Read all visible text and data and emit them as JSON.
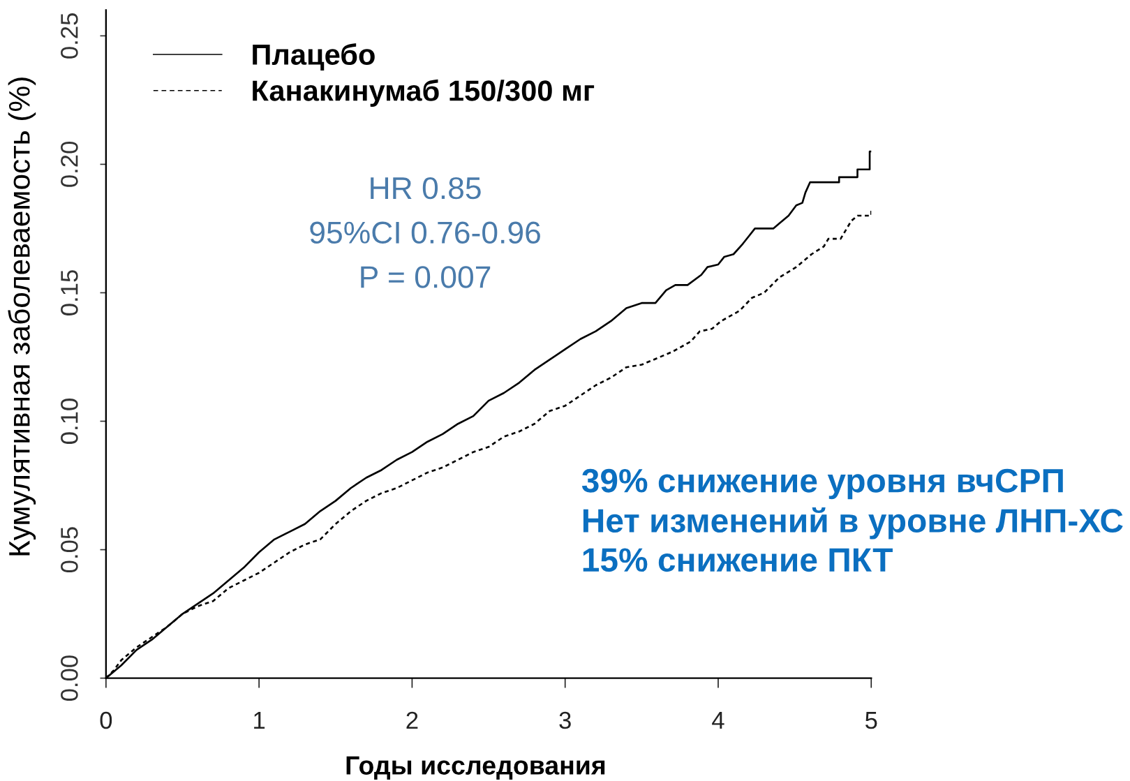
{
  "chart_data": {
    "type": "line",
    "xlabel": "Годы исследования",
    "ylabel": "Кумулятивная заболеваемость (%)",
    "annotations": [
      "HR 0.85\n95%CI 0.76-0.96\nP = 0.007",
      "39% снижение уровня вчСРП\nНет изменений в уровне ЛНП-ХС\n15% снижение ПКТ"
    ],
    "xlim": [
      0,
      5
    ],
    "ylim": [
      0,
      0.26
    ],
    "xticks": [
      0,
      1,
      2,
      3,
      4,
      5
    ],
    "yticks": [
      {
        "value": 0,
        "label": "0.00"
      },
      0.05,
      {
        "value": 0.1,
        "label": "0.10"
      },
      0.15,
      {
        "value": 0.2,
        "label": "0.20"
      },
      0.25
    ],
    "legend": "top left",
    "series": [
      {
        "name": "Плацебо",
        "color": "#000000",
        "line_style": "solid",
        "x": [
          0,
          0.1,
          0.2,
          0.3,
          0.4,
          0.5,
          0.6,
          0.7,
          0.8,
          0.9,
          1.0,
          1.1,
          1.2,
          1.3,
          1.4,
          1.5,
          1.6,
          1.7,
          1.8,
          1.9,
          2.0,
          2.1,
          2.2,
          2.3,
          2.4,
          2.5,
          2.6,
          2.7,
          2.8,
          2.9,
          3.0,
          3.1,
          3.2,
          3.3,
          3.4,
          3.5,
          3.59,
          3.66,
          3.72,
          3.8,
          3.89,
          3.93,
          4.0,
          4.04,
          4.1,
          4.16,
          4.2,
          4.24,
          4.36,
          4.4,
          4.46,
          4.51,
          4.55,
          4.57,
          4.6,
          4.79,
          4.79,
          4.91,
          4.91,
          4.99,
          4.99,
          5.0
        ],
        "values": [
          0,
          0.005,
          0.011,
          0.015,
          0.02,
          0.025,
          0.029,
          0.033,
          0.038,
          0.043,
          0.049,
          0.054,
          0.057,
          0.06,
          0.065,
          0.069,
          0.074,
          0.078,
          0.081,
          0.085,
          0.088,
          0.092,
          0.095,
          0.099,
          0.102,
          0.108,
          0.111,
          0.115,
          0.12,
          0.124,
          0.128,
          0.132,
          0.135,
          0.139,
          0.144,
          0.146,
          0.146,
          0.151,
          0.153,
          0.153,
          0.157,
          0.16,
          0.161,
          0.164,
          0.165,
          0.169,
          0.172,
          0.175,
          0.175,
          0.177,
          0.18,
          0.184,
          0.185,
          0.189,
          0.193,
          0.193,
          0.195,
          0.195,
          0.198,
          0.198,
          0.205,
          0.205
        ]
      },
      {
        "name": "Канакинумаб 150/300 мг",
        "color": "#000000",
        "line_style": "dashed",
        "x": [
          0,
          0.05,
          0.1,
          0.2,
          0.3,
          0.4,
          0.5,
          0.6,
          0.7,
          0.8,
          0.9,
          1.0,
          1.1,
          1.2,
          1.3,
          1.4,
          1.5,
          1.6,
          1.7,
          1.8,
          1.9,
          2.0,
          2.1,
          2.2,
          2.3,
          2.4,
          2.5,
          2.6,
          2.7,
          2.8,
          2.9,
          3.0,
          3.1,
          3.2,
          3.3,
          3.4,
          3.5,
          3.58,
          3.7,
          3.82,
          3.88,
          3.96,
          4.02,
          4.14,
          4.22,
          4.3,
          4.4,
          4.51,
          4.61,
          4.69,
          4.72,
          4.8,
          4.87,
          4.91,
          5.0,
          5.0
        ],
        "values": [
          0,
          0.003,
          0.007,
          0.012,
          0.016,
          0.02,
          0.025,
          0.028,
          0.03,
          0.035,
          0.038,
          0.041,
          0.045,
          0.049,
          0.052,
          0.054,
          0.06,
          0.065,
          0.069,
          0.072,
          0.074,
          0.077,
          0.08,
          0.082,
          0.085,
          0.088,
          0.09,
          0.094,
          0.096,
          0.099,
          0.104,
          0.106,
          0.11,
          0.114,
          0.117,
          0.121,
          0.122,
          0.124,
          0.127,
          0.131,
          0.135,
          0.136,
          0.139,
          0.143,
          0.148,
          0.15,
          0.156,
          0.16,
          0.165,
          0.168,
          0.171,
          0.171,
          0.178,
          0.18,
          0.18,
          0.182
        ]
      }
    ]
  }
}
